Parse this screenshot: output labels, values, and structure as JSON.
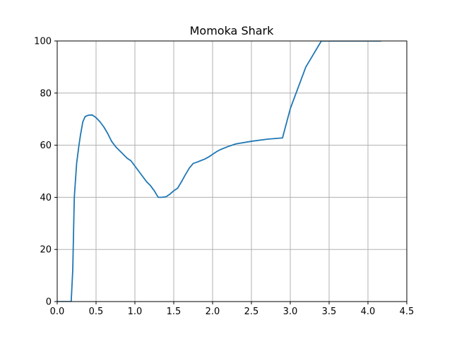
{
  "chart_data": {
    "type": "line",
    "title": "Momoka Shark",
    "xlabel": "",
    "ylabel": "",
    "xlim": [
      0,
      4.5
    ],
    "ylim": [
      0,
      100
    ],
    "xticks": [
      0.0,
      0.5,
      1.0,
      1.5,
      2.0,
      2.5,
      3.0,
      3.5,
      4.0,
      4.5
    ],
    "xtick_labels": [
      "0.0",
      "0.5",
      "1.0",
      "1.5",
      "2.0",
      "2.5",
      "3.0",
      "3.5",
      "4.0",
      "4.5"
    ],
    "yticks": [
      0,
      20,
      40,
      60,
      80,
      100
    ],
    "ytick_labels": [
      "0",
      "20",
      "40",
      "60",
      "80",
      "100"
    ],
    "grid": true,
    "series": [
      {
        "color": "#1f77b4",
        "x": [
          0.0,
          0.1,
          0.18,
          0.2,
          0.22,
          0.25,
          0.28,
          0.3,
          0.33,
          0.36,
          0.4,
          0.45,
          0.5,
          0.55,
          0.6,
          0.65,
          0.7,
          0.75,
          0.8,
          0.85,
          0.9,
          0.95,
          1.0,
          1.05,
          1.1,
          1.15,
          1.2,
          1.25,
          1.3,
          1.35,
          1.4,
          1.45,
          1.5,
          1.55,
          1.6,
          1.65,
          1.7,
          1.75,
          1.8,
          1.85,
          1.9,
          1.95,
          2.0,
          2.05,
          2.1,
          2.2,
          2.3,
          2.5,
          2.7,
          2.9,
          3.0,
          3.2,
          3.4,
          3.6,
          3.8,
          4.0,
          4.05,
          4.1,
          4.12,
          4.14,
          4.16,
          4.17
        ],
        "y": [
          0,
          0,
          0,
          12,
          40,
          53,
          60,
          64,
          69,
          71,
          71.5,
          71.6,
          70.6,
          69,
          67,
          64.5,
          61.5,
          59.5,
          58,
          56.5,
          55,
          54,
          52,
          50,
          48,
          46,
          44.5,
          42.5,
          40,
          40,
          40.2,
          41.2,
          42.5,
          43.5,
          46,
          48.7,
          51.2,
          53,
          53.5,
          54.1,
          54.7,
          55.5,
          56.5,
          57.5,
          58.3,
          59.5,
          60.5,
          61.5,
          62.3,
          62.8,
          74,
          90,
          100,
          100,
          100,
          100,
          100,
          100,
          100,
          100,
          100,
          100
        ]
      }
    ]
  }
}
